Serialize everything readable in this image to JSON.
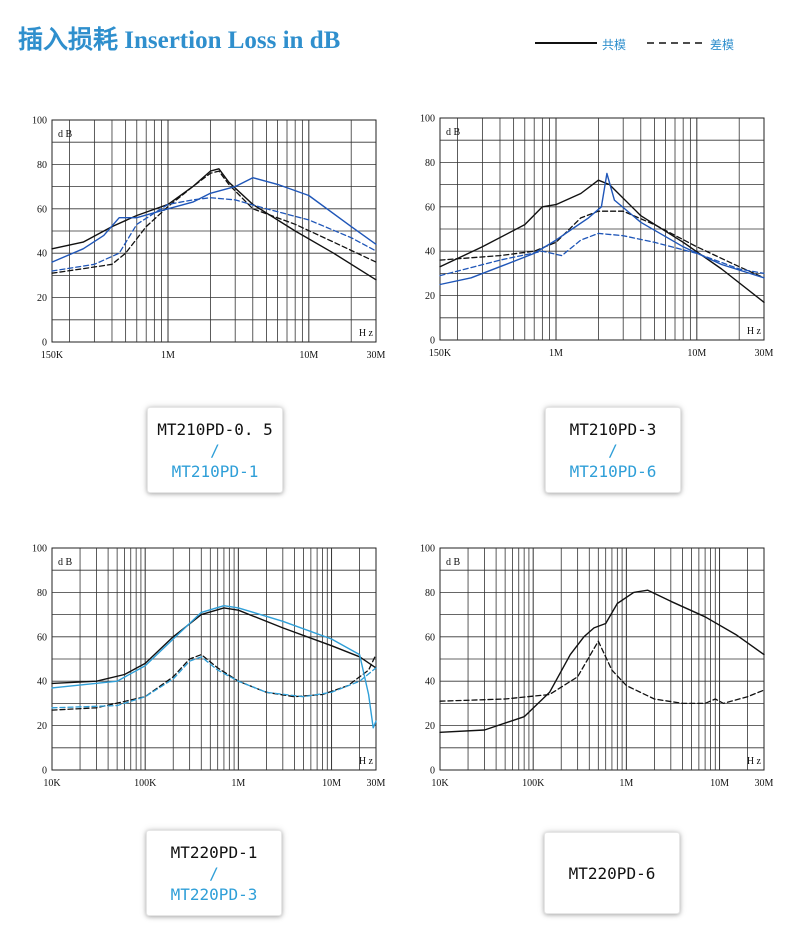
{
  "page": {
    "title": "插入损耗 Insertion Loss in dB",
    "legend": [
      {
        "label": "共模",
        "style": "solid"
      },
      {
        "label": "差模",
        "style": "dashed"
      }
    ]
  },
  "colors": {
    "title": "#2f8fcd",
    "black_trace": "#111111",
    "blue_trace": "#1f56b8",
    "light_blue_trace": "#2f9fd8",
    "model_secondary": "#2f9fd8"
  },
  "chart_data": [
    {
      "type": "line",
      "xscale": "log",
      "x_unit": "Hz",
      "xlim": [
        150000,
        30000000
      ],
      "ylim": [
        0,
        100
      ],
      "grid": true,
      "y_unit_label": "d B",
      "x_unit_label": "H z",
      "y_ticks": [
        "0",
        "20",
        "40",
        "60",
        "80",
        "100"
      ],
      "x_ticks": [
        {
          "label": "150K",
          "value": 150000
        },
        {
          "label": "1M",
          "value": 1000000
        },
        {
          "label": "10M",
          "value": 10000000
        },
        {
          "label": "30M",
          "value": 30000000
        }
      ],
      "model": [
        "MT210PD-0. 5",
        "/",
        "MT210PD-1"
      ],
      "series": [
        {
          "color": "black",
          "dash": "solid",
          "points": [
            [
              150000,
              42
            ],
            [
              250000,
              45
            ],
            [
              400000,
              52
            ],
            [
              600000,
              57
            ],
            [
              1000000,
              62
            ],
            [
              1500000,
              70
            ],
            [
              2000000,
              77
            ],
            [
              2300000,
              78
            ],
            [
              2700000,
              72
            ],
            [
              4000000,
              62
            ],
            [
              8000000,
              50
            ],
            [
              15000000,
              40
            ],
            [
              30000000,
              28
            ]
          ]
        },
        {
          "color": "black",
          "dash": "dashed",
          "points": [
            [
              150000,
              31
            ],
            [
              250000,
              33
            ],
            [
              400000,
              35
            ],
            [
              500000,
              40
            ],
            [
              700000,
              52
            ],
            [
              1000000,
              61
            ],
            [
              1500000,
              70
            ],
            [
              2000000,
              76
            ],
            [
              2300000,
              77
            ],
            [
              2700000,
              71
            ],
            [
              4000000,
              60
            ],
            [
              8000000,
              53
            ],
            [
              15000000,
              45
            ],
            [
              30000000,
              36
            ]
          ]
        },
        {
          "color": "blue",
          "dash": "solid",
          "points": [
            [
              150000,
              36
            ],
            [
              250000,
              42
            ],
            [
              350000,
              48
            ],
            [
              450000,
              56
            ],
            [
              600000,
              56
            ],
            [
              1000000,
              60
            ],
            [
              1500000,
              63
            ],
            [
              2000000,
              67
            ],
            [
              3000000,
              70
            ],
            [
              4000000,
              74
            ],
            [
              6000000,
              71
            ],
            [
              10000000,
              66
            ],
            [
              20000000,
              52
            ],
            [
              30000000,
              44
            ]
          ]
        },
        {
          "color": "blue",
          "dash": "dashed",
          "points": [
            [
              150000,
              32
            ],
            [
              300000,
              35
            ],
            [
              450000,
              40
            ],
            [
              600000,
              53
            ],
            [
              1000000,
              62
            ],
            [
              1500000,
              64
            ],
            [
              2000000,
              65
            ],
            [
              3000000,
              64
            ],
            [
              5000000,
              60
            ],
            [
              10000000,
              55
            ],
            [
              20000000,
              47
            ],
            [
              30000000,
              41
            ]
          ]
        }
      ]
    },
    {
      "type": "line",
      "xscale": "log",
      "x_unit": "Hz",
      "xlim": [
        150000,
        30000000
      ],
      "ylim": [
        0,
        100
      ],
      "grid": true,
      "y_unit_label": "d B",
      "x_unit_label": "H z",
      "y_ticks": [
        "0",
        "20",
        "40",
        "60",
        "80",
        "100"
      ],
      "x_ticks": [
        {
          "label": "150K",
          "value": 150000
        },
        {
          "label": "1M",
          "value": 1000000
        },
        {
          "label": "10M",
          "value": 10000000
        },
        {
          "label": "30M",
          "value": 30000000
        }
      ],
      "model": [
        "MT210PD-3",
        "/",
        "MT210PD-6"
      ],
      "series": [
        {
          "color": "black",
          "dash": "solid",
          "points": [
            [
              150000,
              33
            ],
            [
              300000,
              42
            ],
            [
              600000,
              52
            ],
            [
              800000,
              60
            ],
            [
              1000000,
              61
            ],
            [
              1500000,
              66
            ],
            [
              2000000,
              72
            ],
            [
              2400000,
              70
            ],
            [
              4000000,
              56
            ],
            [
              8000000,
              44
            ],
            [
              15000000,
              32
            ],
            [
              30000000,
              17
            ]
          ]
        },
        {
          "color": "black",
          "dash": "dashed",
          "points": [
            [
              150000,
              36
            ],
            [
              400000,
              38
            ],
            [
              700000,
              40
            ],
            [
              1000000,
              44
            ],
            [
              1500000,
              55
            ],
            [
              2000000,
              58
            ],
            [
              3000000,
              58
            ],
            [
              5000000,
              52
            ],
            [
              10000000,
              42
            ],
            [
              20000000,
              33
            ],
            [
              30000000,
              28
            ]
          ]
        },
        {
          "color": "blue",
          "dash": "solid",
          "points": [
            [
              150000,
              25
            ],
            [
              250000,
              28
            ],
            [
              400000,
              33
            ],
            [
              700000,
              39
            ],
            [
              1000000,
              45
            ],
            [
              1300000,
              50
            ],
            [
              1700000,
              55
            ],
            [
              2100000,
              60
            ],
            [
              2300000,
              75
            ],
            [
              2600000,
              63
            ],
            [
              4000000,
              53
            ],
            [
              8000000,
              42
            ],
            [
              15000000,
              34
            ],
            [
              30000000,
              28
            ]
          ]
        },
        {
          "color": "blue",
          "dash": "dashed",
          "points": [
            [
              150000,
              29
            ],
            [
              400000,
              36
            ],
            [
              800000,
              40
            ],
            [
              1100000,
              38
            ],
            [
              1500000,
              45
            ],
            [
              2000000,
              48
            ],
            [
              3000000,
              47
            ],
            [
              5000000,
              44
            ],
            [
              10000000,
              39
            ],
            [
              20000000,
              32
            ],
            [
              30000000,
              30
            ]
          ]
        }
      ]
    },
    {
      "type": "line",
      "xscale": "log",
      "x_unit": "Hz",
      "xlim": [
        10000,
        30000000
      ],
      "ylim": [
        0,
        100
      ],
      "grid": true,
      "y_unit_label": "d B",
      "x_unit_label": "H z",
      "y_ticks": [
        "0",
        "20",
        "40",
        "60",
        "80",
        "100"
      ],
      "x_ticks": [
        {
          "label": "10K",
          "value": 10000
        },
        {
          "label": "100K",
          "value": 100000
        },
        {
          "label": "1M",
          "value": 1000000
        },
        {
          "label": "10M",
          "value": 10000000
        },
        {
          "label": "30M",
          "value": 30000000
        }
      ],
      "model": [
        "MT220PD-1",
        "/",
        "MT220PD-3"
      ],
      "series": [
        {
          "color": "black",
          "dash": "solid",
          "points": [
            [
              10000,
              39
            ],
            [
              30000,
              40
            ],
            [
              60000,
              43
            ],
            [
              100000,
              48
            ],
            [
              200000,
              60
            ],
            [
              400000,
              70
            ],
            [
              700000,
              73
            ],
            [
              1000000,
              72
            ],
            [
              3000000,
              64
            ],
            [
              10000000,
              56
            ],
            [
              20000000,
              51
            ],
            [
              30000000,
              46
            ]
          ]
        },
        {
          "color": "black",
          "dash": "dashed",
          "points": [
            [
              10000,
              27
            ],
            [
              30000,
              28
            ],
            [
              100000,
              33
            ],
            [
              200000,
              42
            ],
            [
              300000,
              50
            ],
            [
              400000,
              52
            ],
            [
              600000,
              46
            ],
            [
              1000000,
              40
            ],
            [
              2000000,
              35
            ],
            [
              4000000,
              33
            ],
            [
              8000000,
              34
            ],
            [
              15000000,
              38
            ],
            [
              25000000,
              45
            ],
            [
              30000000,
              52
            ]
          ]
        },
        {
          "color": "light_blue",
          "dash": "solid",
          "points": [
            [
              10000,
              37
            ],
            [
              50000,
              40
            ],
            [
              100000,
              47
            ],
            [
              200000,
              59
            ],
            [
              400000,
              71
            ],
            [
              700000,
              74
            ],
            [
              1000000,
              73
            ],
            [
              3000000,
              67
            ],
            [
              10000000,
              59
            ],
            [
              20000000,
              52
            ],
            [
              25000000,
              34
            ],
            [
              28000000,
              19
            ],
            [
              30000000,
              22
            ]
          ]
        },
        {
          "color": "light_blue",
          "dash": "dashed",
          "points": [
            [
              10000,
              28
            ],
            [
              50000,
              29
            ],
            [
              100000,
              33
            ],
            [
              200000,
              41
            ],
            [
              300000,
              49
            ],
            [
              400000,
              51
            ],
            [
              600000,
              45
            ],
            [
              1000000,
              40
            ],
            [
              2000000,
              35
            ],
            [
              5000000,
              33
            ],
            [
              10000000,
              35
            ],
            [
              20000000,
              40
            ],
            [
              30000000,
              46
            ]
          ]
        }
      ]
    },
    {
      "type": "line",
      "xscale": "log",
      "x_unit": "Hz",
      "xlim": [
        10000,
        30000000
      ],
      "ylim": [
        0,
        100
      ],
      "grid": true,
      "y_unit_label": "d B",
      "x_unit_label": "H z",
      "y_ticks": [
        "0",
        "20",
        "40",
        "60",
        "80",
        "100"
      ],
      "x_ticks": [
        {
          "label": "10K",
          "value": 10000
        },
        {
          "label": "100K",
          "value": 100000
        },
        {
          "label": "1M",
          "value": 1000000
        },
        {
          "label": "10M",
          "value": 10000000
        },
        {
          "label": "30M",
          "value": 30000000
        }
      ],
      "model": [
        "MT220PD-6"
      ],
      "series": [
        {
          "color": "black",
          "dash": "solid",
          "points": [
            [
              10000,
              17
            ],
            [
              30000,
              18
            ],
            [
              80000,
              24
            ],
            [
              150000,
              35
            ],
            [
              250000,
              52
            ],
            [
              350000,
              60
            ],
            [
              450000,
              64
            ],
            [
              600000,
              66
            ],
            [
              800000,
              75
            ],
            [
              1200000,
              80
            ],
            [
              1700000,
              81
            ],
            [
              3000000,
              76
            ],
            [
              7000000,
              69
            ],
            [
              15000000,
              61
            ],
            [
              30000000,
              52
            ]
          ]
        },
        {
          "color": "black",
          "dash": "dashed",
          "points": [
            [
              10000,
              31
            ],
            [
              50000,
              32
            ],
            [
              150000,
              34
            ],
            [
              300000,
              42
            ],
            [
              500000,
              58
            ],
            [
              700000,
              45
            ],
            [
              1000000,
              38
            ],
            [
              2000000,
              32
            ],
            [
              4000000,
              30
            ],
            [
              7000000,
              30
            ],
            [
              9000000,
              32
            ],
            [
              11000000,
              30
            ],
            [
              20000000,
              33
            ],
            [
              30000000,
              36
            ]
          ]
        }
      ]
    }
  ]
}
